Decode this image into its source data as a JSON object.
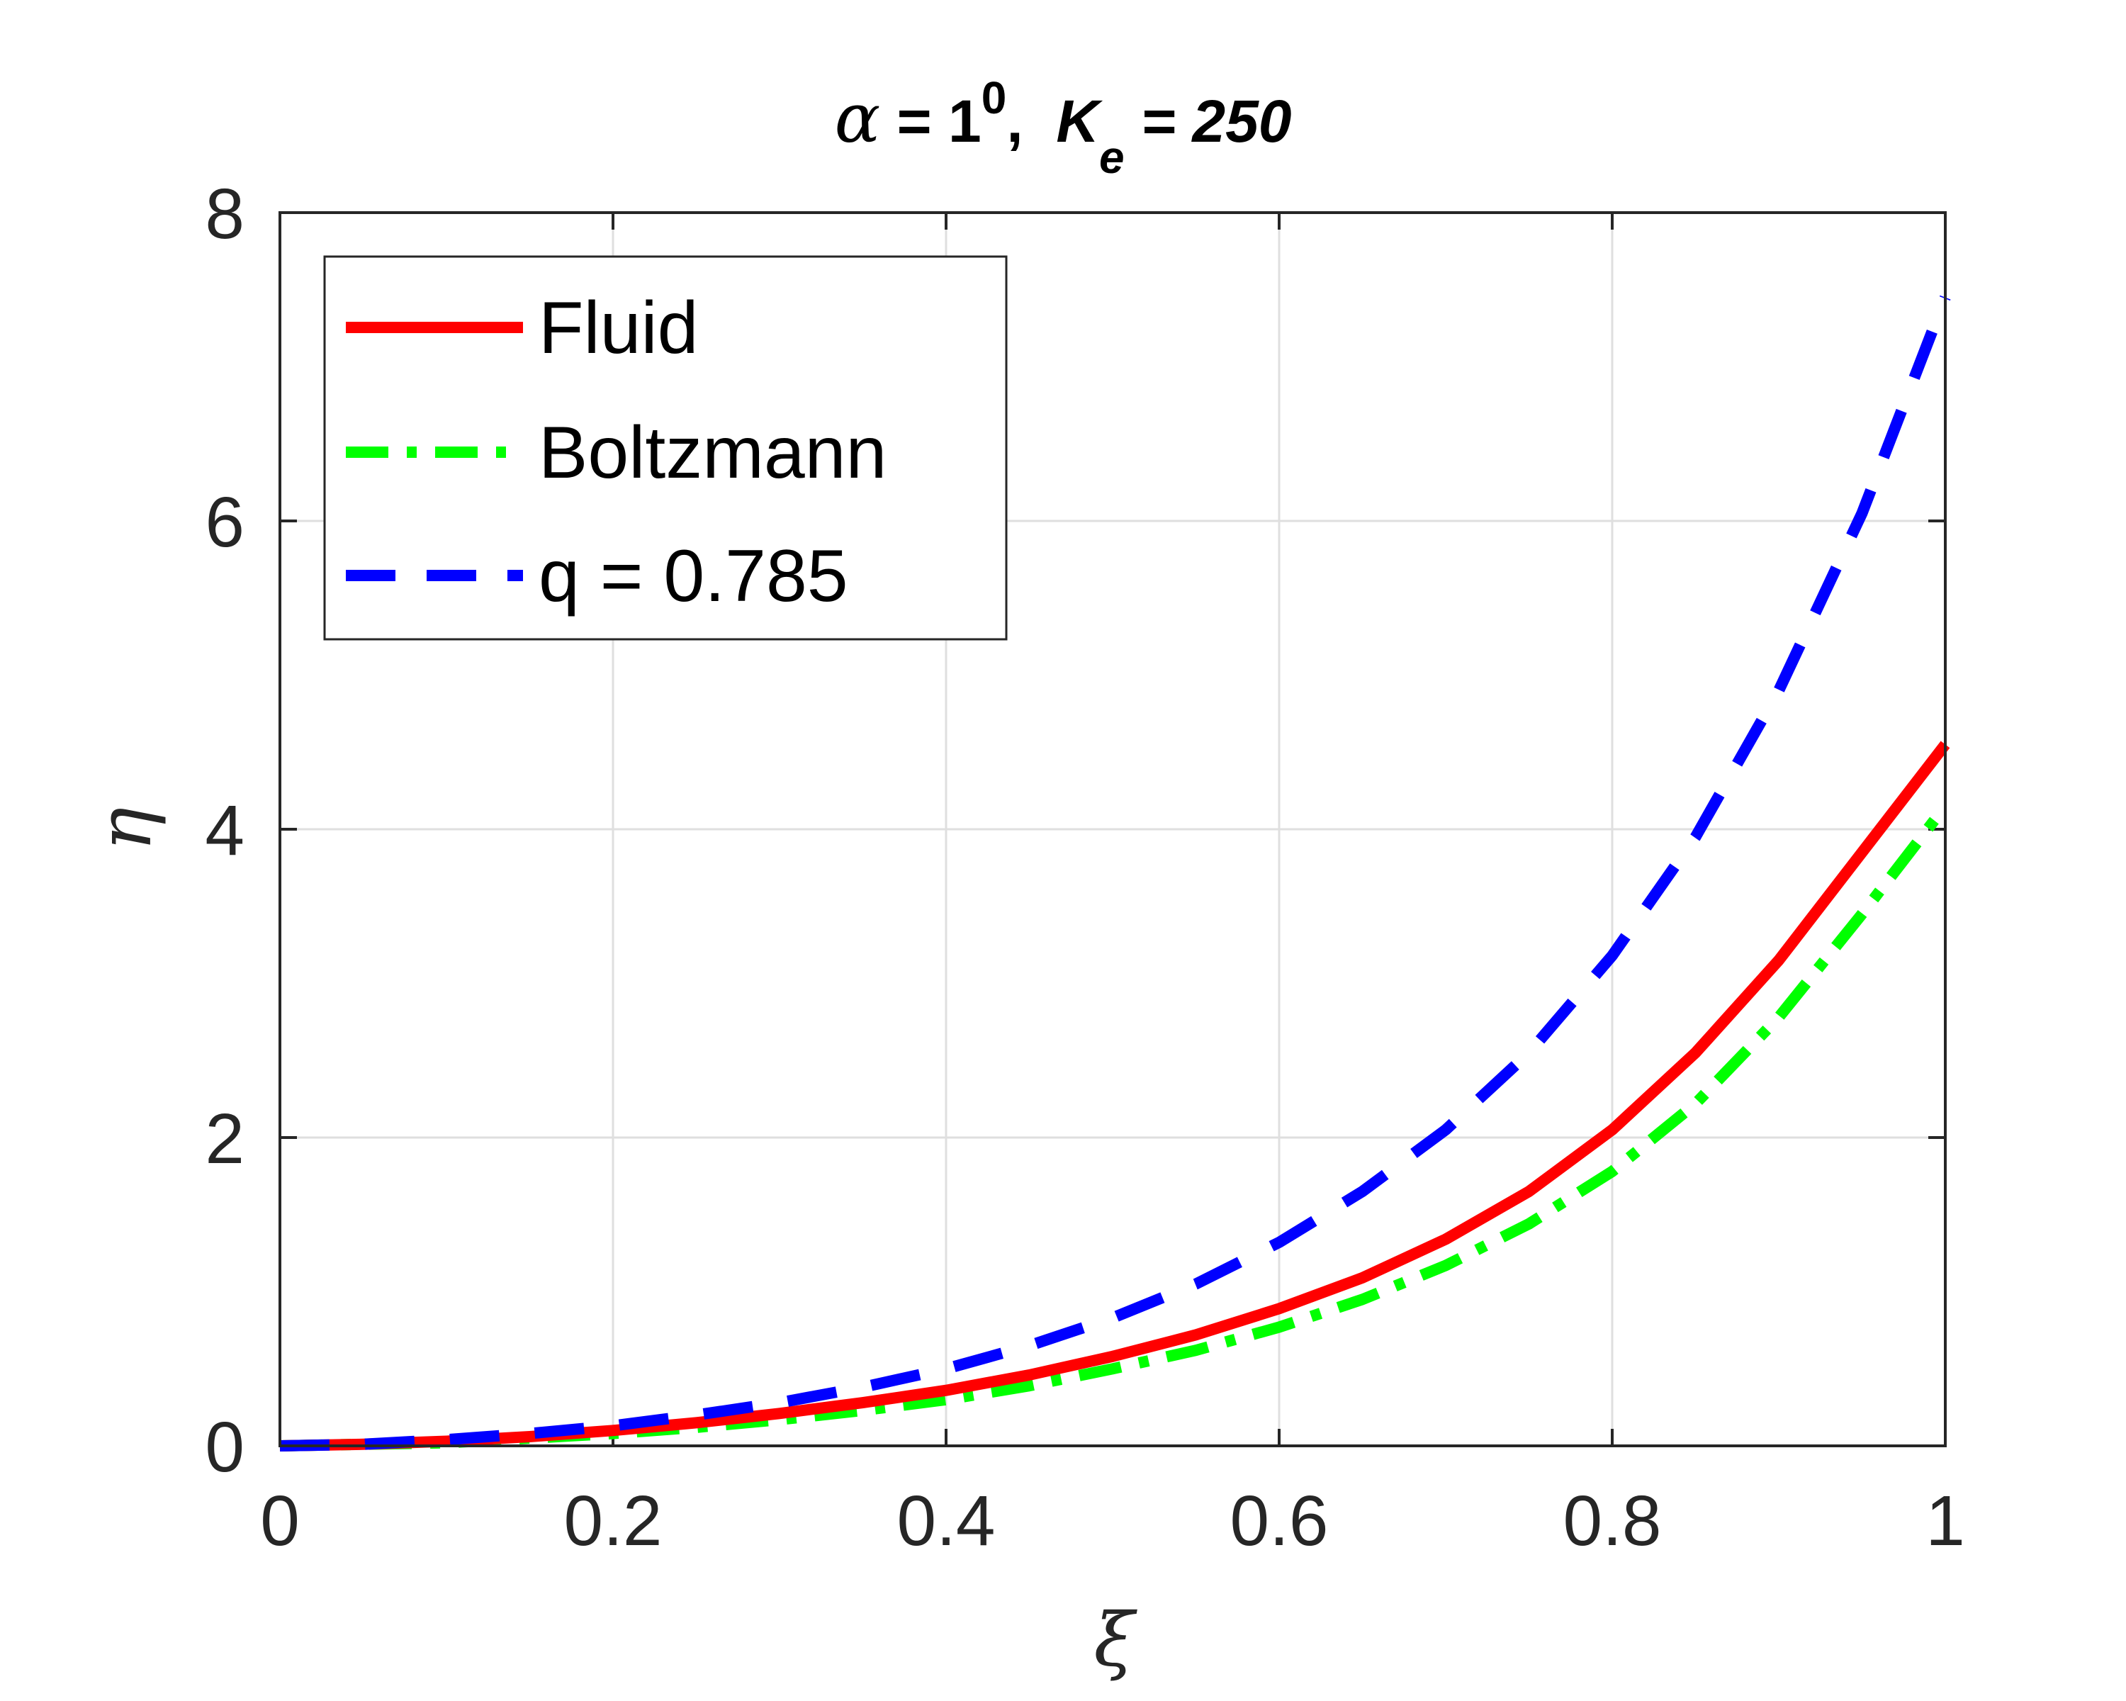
{
  "chart_data": {
    "type": "line",
    "title": {
      "alpha_symbol": "α",
      "alpha_part": " = 1",
      "alpha_superscript": "0",
      "separator": ",  ",
      "k_symbol": "K",
      "k_subscript": "e",
      "k_part": " = 250"
    },
    "xlabel": "ξ",
    "ylabel": "η",
    "xlim": [
      0,
      1
    ],
    "ylim": [
      0,
      8
    ],
    "x_ticks": [
      0,
      0.2,
      0.4,
      0.6,
      0.8,
      1
    ],
    "x_tick_labels": [
      "0",
      "0.2",
      "0.4",
      "0.6",
      "0.8",
      "1"
    ],
    "y_ticks": [
      0,
      2,
      4,
      6,
      8
    ],
    "y_tick_labels": [
      "0",
      "2",
      "4",
      "6",
      "8"
    ],
    "grid": true,
    "legend_position": "top-left",
    "x": [
      0,
      0.05,
      0.1,
      0.15,
      0.2,
      0.25,
      0.3,
      0.35,
      0.4,
      0.45,
      0.5,
      0.55,
      0.6,
      0.65,
      0.7,
      0.75,
      0.8,
      0.85,
      0.9,
      0.95,
      1.0
    ],
    "series": [
      {
        "name": "Fluid",
        "color": "#ff0000",
        "style": "solid",
        "values": [
          0,
          0.01,
          0.03,
          0.06,
          0.1,
          0.15,
          0.21,
          0.28,
          0.36,
          0.46,
          0.58,
          0.72,
          0.89,
          1.09,
          1.34,
          1.65,
          2.05,
          2.55,
          3.15,
          3.85,
          4.55
        ]
      },
      {
        "name": "Boltzmann",
        "color": "#00ff00",
        "style": "dash-dot",
        "values": [
          0,
          0.01,
          0.02,
          0.05,
          0.08,
          0.12,
          0.17,
          0.23,
          0.3,
          0.39,
          0.5,
          0.62,
          0.77,
          0.95,
          1.17,
          1.44,
          1.78,
          2.22,
          2.78,
          3.45,
          4.15
        ]
      },
      {
        "name": "q = 0.785",
        "color": "#0000ff",
        "style": "dashed",
        "values": [
          0,
          0.01,
          0.04,
          0.08,
          0.13,
          0.2,
          0.28,
          0.38,
          0.5,
          0.65,
          0.83,
          1.05,
          1.32,
          1.65,
          2.05,
          2.55,
          3.18,
          3.95,
          4.9,
          6.05,
          7.45
        ]
      }
    ]
  }
}
